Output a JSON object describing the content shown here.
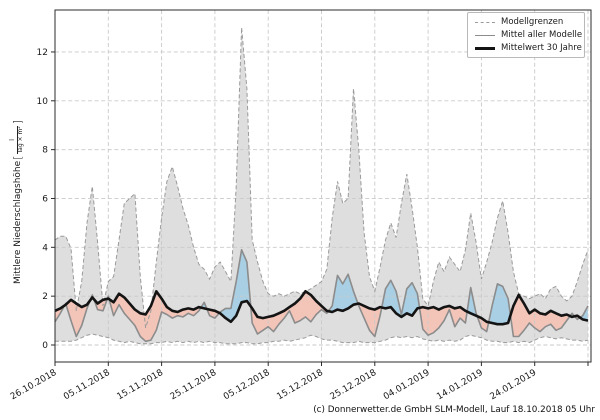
{
  "caption": "(c) Donnerwetter.de GmbH SLM-Modell, Lauf 18.10.2018 05 Uhr",
  "legend": {
    "items": [
      {
        "label": "Modellgrenzen",
        "style": "dashed-gray"
      },
      {
        "label": "Mittel aller Modelle",
        "style": "solid-gray"
      },
      {
        "label": "Mittelwert 30 Jahre",
        "style": "solid-black"
      }
    ]
  },
  "ylabel": {
    "main": "Mittlere Niederschlagshöhe",
    "bracket_open": "[",
    "unit_num": "l",
    "unit_den": "Tag × m²",
    "bracket_close": "]"
  },
  "chart_data": {
    "type": "line",
    "title": "",
    "xlabel": "",
    "ylabel": "Mittlere Niederschlagshöhe [l/(Tag × m²)]",
    "x_start_date": "26.10.2018",
    "x_unit": "days",
    "grid": true,
    "legend_position": "upper right",
    "ylim": [
      -0.7,
      13.7
    ],
    "y_ticks": [
      0,
      2,
      4,
      6,
      8,
      10,
      12
    ],
    "x_tick_days": [
      0,
      10,
      20,
      30,
      40,
      50,
      60,
      70,
      80,
      90
    ],
    "x_tick_labels": [
      "26.10.2018",
      "05.11.2018",
      "15.11.2018",
      "25.11.2018",
      "05.12.2018",
      "15.12.2018",
      "25.12.2018",
      "04.01.2019",
      "14.01.2019",
      "24.01.2019"
    ],
    "extra_grid_days": [
      100
    ],
    "colors": {
      "envelope_fill": "#dedede",
      "envelope_line": "#9a9a9a",
      "above_fill": "#a9cfe5",
      "below_fill": "#f3c5b9",
      "mean_line": "#8c8c8c",
      "mean30_line": "#141414",
      "grid_line": "#c9c9c9",
      "frame": "#2b2b2b"
    },
    "series": [
      {
        "name": "Modellgrenzen (obere Grenze)",
        "role": "upper",
        "values": [
          4.3,
          4.45,
          4.45,
          3.95,
          1.4,
          2.6,
          5.0,
          6.5,
          4.2,
          1.6,
          2.6,
          2.8,
          4.3,
          5.8,
          6.0,
          6.2,
          2.8,
          0.7,
          1.4,
          3.4,
          5.2,
          6.7,
          7.3,
          6.5,
          5.6,
          4.9,
          4.0,
          3.3,
          3.1,
          2.7,
          3.2,
          3.4,
          3.0,
          2.6,
          6.5,
          13.0,
          10.5,
          4.3,
          3.4,
          2.6,
          2.1,
          2.0,
          2.1,
          2.0,
          2.1,
          2.2,
          2.1,
          2.2,
          2.3,
          2.45,
          2.6,
          3.1,
          5.2,
          6.7,
          5.8,
          6.0,
          10.5,
          8.0,
          4.6,
          2.8,
          2.2,
          3.2,
          4.3,
          5.0,
          4.4,
          5.8,
          7.0,
          5.6,
          4.0,
          1.9,
          1.6,
          2.6,
          3.4,
          3.0,
          3.6,
          3.3,
          3.0,
          3.9,
          5.4,
          4.2,
          2.7,
          3.4,
          4.2,
          5.2,
          5.9,
          4.6,
          3.0,
          2.1,
          2.0,
          1.9,
          2.0,
          2.1,
          1.9,
          2.3,
          2.4,
          2.0,
          1.8,
          2.0,
          2.6,
          3.3,
          3.9
        ]
      },
      {
        "name": "Modellgrenzen (untere Grenze)",
        "role": "lower",
        "values": [
          0.15,
          0.15,
          0.15,
          0.15,
          0.2,
          0.3,
          0.4,
          0.45,
          0.4,
          0.35,
          0.3,
          0.2,
          0.15,
          0.1,
          0.15,
          0.1,
          0.05,
          0.05,
          0.05,
          0.1,
          0.1,
          0.15,
          0.1,
          0.15,
          0.1,
          0.15,
          0.1,
          0.15,
          0.1,
          0.15,
          0.1,
          0.1,
          0.05,
          0.05,
          0.05,
          0.1,
          0.1,
          0.05,
          0.05,
          0.1,
          0.1,
          0.15,
          0.15,
          0.2,
          0.15,
          0.2,
          0.25,
          0.3,
          0.4,
          0.35,
          0.25,
          0.2,
          0.2,
          0.15,
          0.1,
          0.1,
          0.1,
          0.15,
          0.1,
          0.1,
          0.1,
          0.15,
          0.2,
          0.3,
          0.35,
          0.3,
          0.35,
          0.3,
          0.35,
          0.25,
          0.2,
          0.15,
          0.2,
          0.15,
          0.2,
          0.15,
          0.2,
          0.35,
          0.4,
          0.35,
          0.3,
          0.2,
          0.15,
          0.15,
          0.1,
          0.1,
          0.15,
          0.1,
          0.15,
          0.1,
          0.2,
          0.3,
          0.35,
          0.3,
          0.25,
          0.3,
          0.25,
          0.2,
          0.2,
          0.15,
          0.2
        ]
      },
      {
        "name": "Mittel aller Modelle",
        "role": "mean",
        "values": [
          0.95,
          1.3,
          1.7,
          1.0,
          0.35,
          0.8,
          1.5,
          2.05,
          1.45,
          1.4,
          2.0,
          1.2,
          1.65,
          1.3,
          1.05,
          0.8,
          0.35,
          0.15,
          0.2,
          0.6,
          1.35,
          1.25,
          1.1,
          1.2,
          1.15,
          1.3,
          1.2,
          1.4,
          1.75,
          1.2,
          1.1,
          1.35,
          1.5,
          1.5,
          2.6,
          3.9,
          3.4,
          0.9,
          0.45,
          0.6,
          0.75,
          0.55,
          0.85,
          1.1,
          1.4,
          0.9,
          1.0,
          1.15,
          0.95,
          1.25,
          1.45,
          1.3,
          1.6,
          2.85,
          2.5,
          2.9,
          2.2,
          1.6,
          1.1,
          0.6,
          0.35,
          1.2,
          2.3,
          2.65,
          2.2,
          1.25,
          2.3,
          2.55,
          2.1,
          0.65,
          0.4,
          0.5,
          0.7,
          1.0,
          1.45,
          0.75,
          1.1,
          0.9,
          2.35,
          1.3,
          0.7,
          0.55,
          1.6,
          2.5,
          2.4,
          1.9,
          0.35,
          0.35,
          0.6,
          0.9,
          0.7,
          0.55,
          0.75,
          0.85,
          0.6,
          0.7,
          1.0,
          1.3,
          1.05,
          1.2,
          1.6
        ]
      },
      {
        "name": "Mittelwert 30 Jahre",
        "role": "mean30",
        "values": [
          1.4,
          1.5,
          1.65,
          1.85,
          1.7,
          1.55,
          1.65,
          1.95,
          1.7,
          1.85,
          1.9,
          1.75,
          2.1,
          1.95,
          1.7,
          1.45,
          1.3,
          1.25,
          1.6,
          2.2,
          1.9,
          1.55,
          1.4,
          1.35,
          1.45,
          1.5,
          1.45,
          1.55,
          1.5,
          1.45,
          1.4,
          1.3,
          1.1,
          0.95,
          1.2,
          1.75,
          1.8,
          1.5,
          1.15,
          1.1,
          1.15,
          1.2,
          1.3,
          1.4,
          1.55,
          1.7,
          1.9,
          2.2,
          2.05,
          1.8,
          1.6,
          1.4,
          1.35,
          1.45,
          1.4,
          1.5,
          1.65,
          1.7,
          1.6,
          1.5,
          1.45,
          1.55,
          1.5,
          1.55,
          1.3,
          1.15,
          1.3,
          1.2,
          1.5,
          1.55,
          1.5,
          1.55,
          1.45,
          1.55,
          1.6,
          1.5,
          1.55,
          1.4,
          1.3,
          1.2,
          1.1,
          0.95,
          0.9,
          0.85,
          0.85,
          0.9,
          1.6,
          2.05,
          1.7,
          1.3,
          1.45,
          1.3,
          1.25,
          1.4,
          1.3,
          1.2,
          1.25,
          1.15,
          1.2,
          1.05,
          1.0
        ]
      }
    ]
  }
}
